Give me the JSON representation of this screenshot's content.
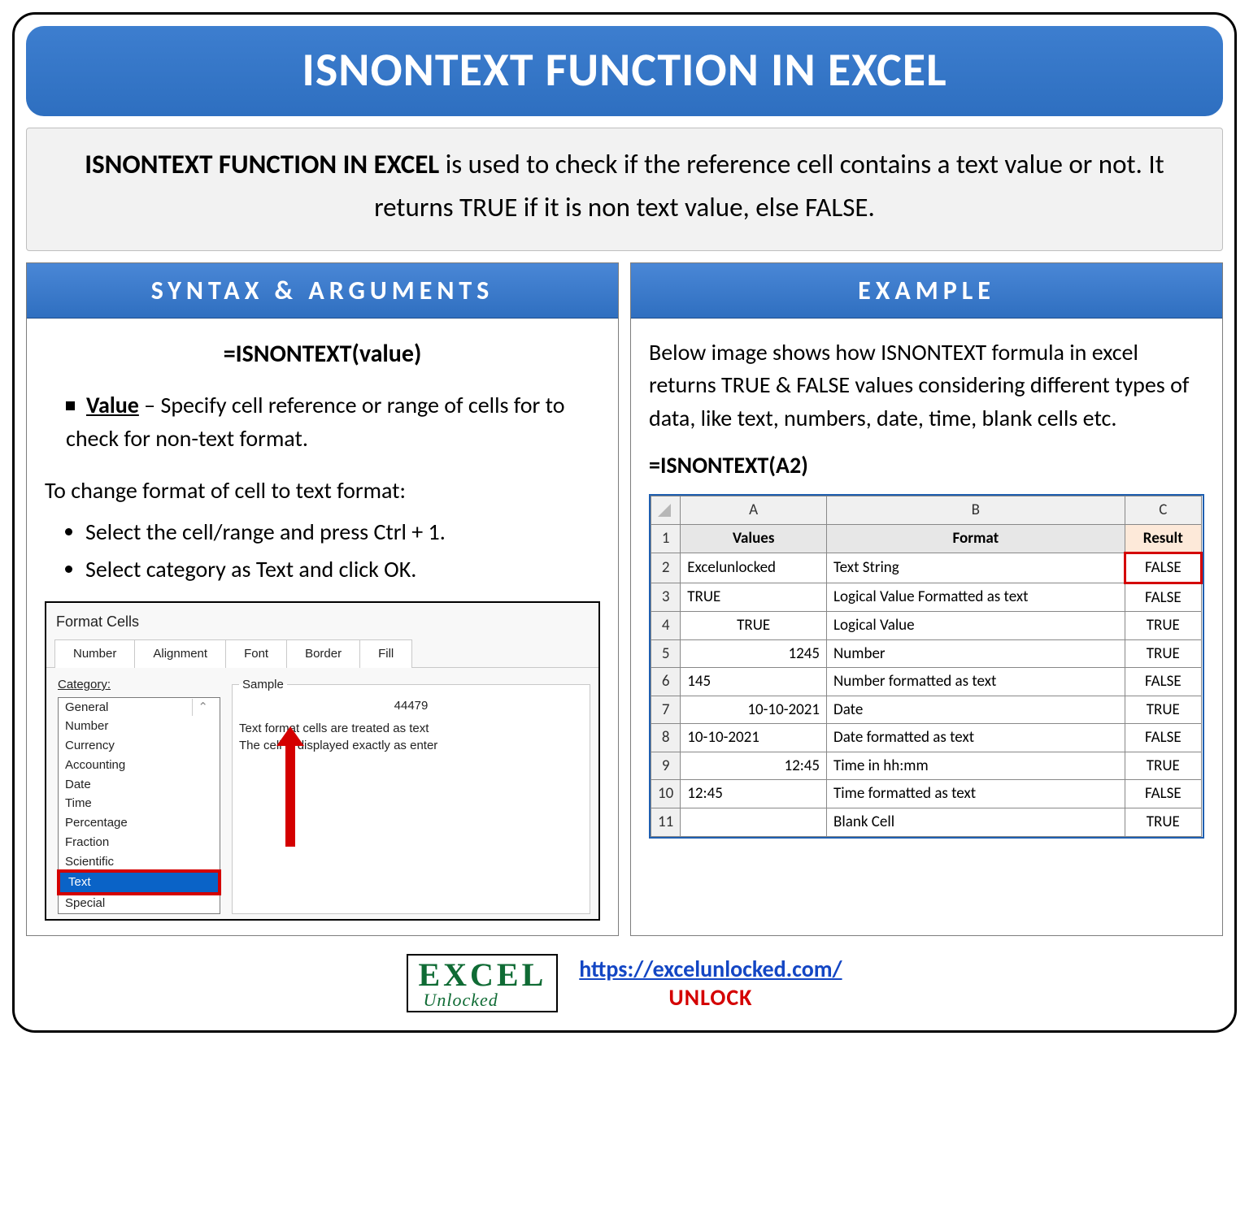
{
  "title": "ISNONTEXT FUNCTION IN EXCEL",
  "description_lead": "ISNONTEXT FUNCTION IN EXCEL",
  "description_rest": " is used to check if the reference cell contains a text value or not. It returns TRUE if it is non text value, else FALSE.",
  "syntax": {
    "header": "SYNTAX & ARGUMENTS",
    "formula": "=ISNONTEXT(value)",
    "arg_name": "Value",
    "arg_desc": " – Specify cell reference or range of cells for to check for non-text format.",
    "steps_intro": "To change format of cell to text format:",
    "steps": [
      "Select the cell/range and press Ctrl + 1.",
      "Select category as Text and click OK."
    ],
    "dialog": {
      "title": "Format Cells",
      "tabs": [
        "Number",
        "Alignment",
        "Font",
        "Border",
        "Fill"
      ],
      "active_tab": "Number",
      "category_label": "Category:",
      "categories": [
        "General",
        "Number",
        "Currency",
        "Accounting",
        "Date",
        "Time",
        "Percentage",
        "Fraction",
        "Scientific",
        "Text",
        "Special"
      ],
      "selected_category": "Text",
      "sample_label": "Sample",
      "sample_value": "44479",
      "sample_text_1": "Text format cells are treated as text",
      "sample_text_2": "The cell is displayed exactly as enter"
    }
  },
  "example": {
    "header": "EXAMPLE",
    "intro": "Below image shows how ISNONTEXT formula in excel returns TRUE & FALSE values considering different types of data, like text, numbers, date, time, blank cells etc.",
    "formula": "=ISNONTEXT(A2)",
    "columns": [
      "A",
      "B",
      "C"
    ],
    "headers": [
      "Values",
      "Format",
      "Result"
    ],
    "rows": [
      {
        "n": "2",
        "a": "Excelunlocked",
        "aAlign": "l",
        "b": "Text String",
        "c": "FALSE",
        "hi": true
      },
      {
        "n": "3",
        "a": "TRUE",
        "aAlign": "l",
        "b": "Logical Value Formatted as text",
        "c": "FALSE"
      },
      {
        "n": "4",
        "a": "TRUE",
        "aAlign": "c",
        "b": "Logical Value",
        "c": "TRUE"
      },
      {
        "n": "5",
        "a": "1245",
        "aAlign": "r",
        "b": "Number",
        "c": "TRUE"
      },
      {
        "n": "6",
        "a": "145",
        "aAlign": "l",
        "b": "Number formatted as text",
        "c": "FALSE"
      },
      {
        "n": "7",
        "a": "10-10-2021",
        "aAlign": "r",
        "b": "Date",
        "c": "TRUE"
      },
      {
        "n": "8",
        "a": "10-10-2021",
        "aAlign": "l",
        "b": "Date formatted as text",
        "c": "FALSE"
      },
      {
        "n": "9",
        "a": "12:45",
        "aAlign": "r",
        "b": "Time in hh:mm",
        "c": "TRUE"
      },
      {
        "n": "10",
        "a": "12:45",
        "aAlign": "l",
        "b": "Time formatted as text",
        "c": "FALSE"
      },
      {
        "n": "11",
        "a": "",
        "aAlign": "l",
        "b": "Blank Cell",
        "c": "TRUE"
      }
    ]
  },
  "footer": {
    "logo_top": "EXCEL",
    "logo_bottom": "Unlocked",
    "url": "https://excelunlocked.com/",
    "unlock": "UNLOCK"
  },
  "colors": {
    "blue_header": "#2e6fc0",
    "red": "#d40000",
    "green_logo": "#0f6b34"
  }
}
